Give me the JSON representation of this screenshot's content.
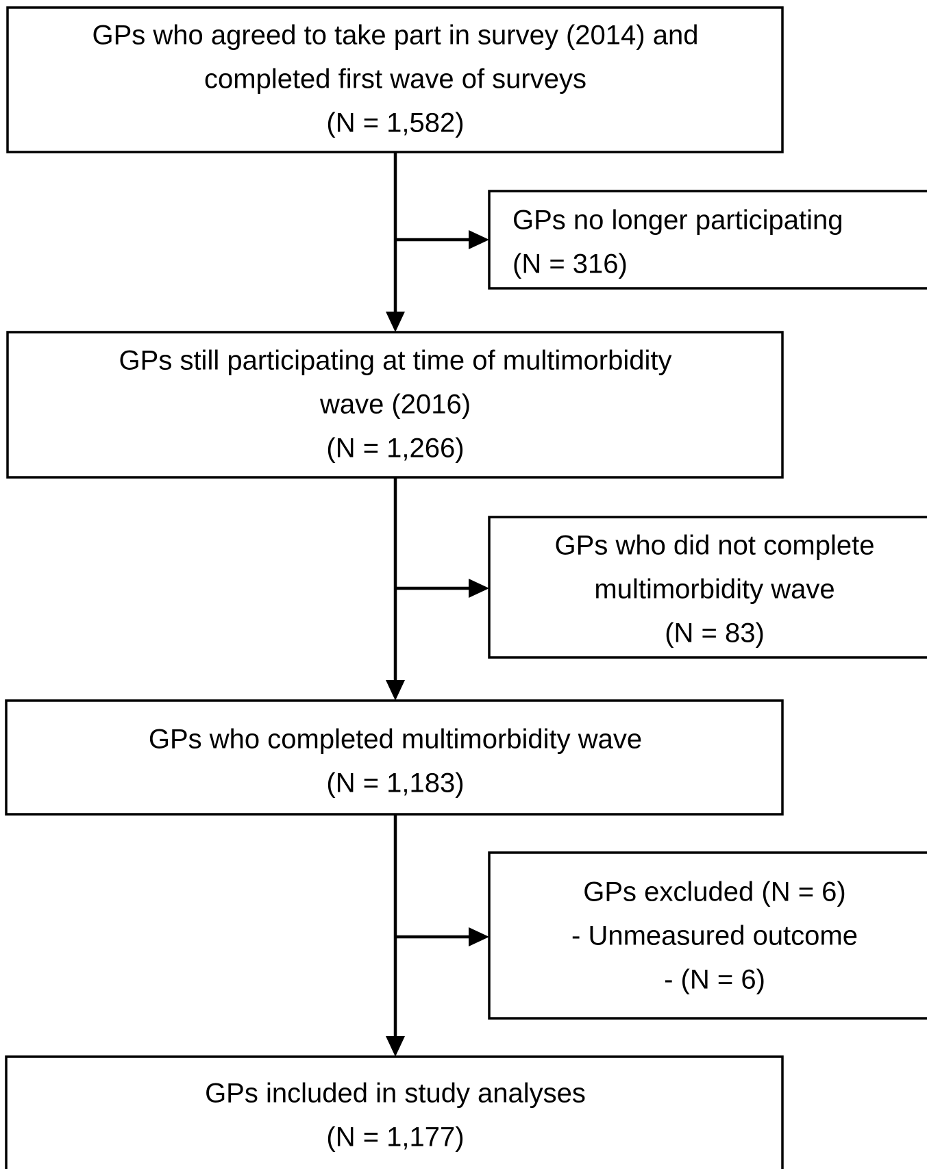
{
  "nodes": [
    {
      "lines": [
        "GPs who agreed to take part in survey (2014) and",
        "completed first wave of surveys",
        "(N = 1,582)"
      ]
    },
    {
      "lines": [
        "GPs no longer participating",
        "(N = 316)"
      ]
    },
    {
      "lines": [
        "GPs still participating at time of multimorbidity",
        "wave (2016)",
        "(N = 1,266)"
      ]
    },
    {
      "lines": [
        "GPs who did not complete",
        "multimorbidity wave",
        "(N = 83)"
      ]
    },
    {
      "lines": [
        "GPs who completed multimorbidity wave",
        "(N = 1,183)"
      ]
    },
    {
      "lines": [
        "GPs excluded (N = 6)",
        "-  Unmeasured outcome",
        "-  (N = 6)"
      ]
    },
    {
      "lines": [
        "GPs included in study analyses",
        "(N = 1,177)"
      ]
    }
  ]
}
